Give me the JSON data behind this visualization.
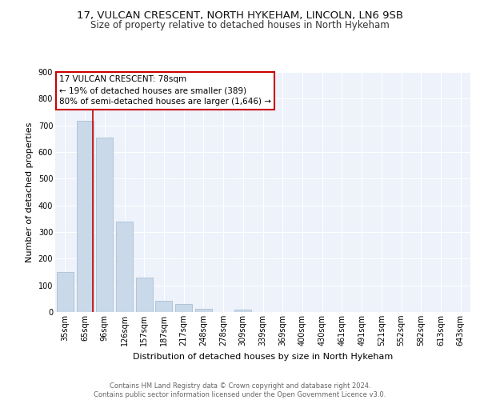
{
  "title1": "17, VULCAN CRESCENT, NORTH HYKEHAM, LINCOLN, LN6 9SB",
  "title2": "Size of property relative to detached houses in North Hykeham",
  "xlabel": "Distribution of detached houses by size in North Hykeham",
  "ylabel": "Number of detached properties",
  "categories": [
    "35sqm",
    "65sqm",
    "96sqm",
    "126sqm",
    "157sqm",
    "187sqm",
    "217sqm",
    "248sqm",
    "278sqm",
    "309sqm",
    "339sqm",
    "369sqm",
    "400sqm",
    "430sqm",
    "461sqm",
    "491sqm",
    "521sqm",
    "552sqm",
    "582sqm",
    "613sqm",
    "643sqm"
  ],
  "values": [
    150,
    718,
    655,
    340,
    130,
    42,
    30,
    12,
    0,
    8,
    0,
    0,
    0,
    0,
    0,
    0,
    0,
    0,
    0,
    0,
    0
  ],
  "bar_color": "#c9d9ea",
  "bar_edge_color": "#aabfcf",
  "vline_color": "#cc0000",
  "vline_x": 1.42,
  "annotation_text": "17 VULCAN CRESCENT: 78sqm\n← 19% of detached houses are smaller (389)\n80% of semi-detached houses are larger (1,646) →",
  "annotation_box_color": "#ffffff",
  "annotation_box_edge_color": "#cc0000",
  "ylim": [
    0,
    900
  ],
  "yticks": [
    0,
    100,
    200,
    300,
    400,
    500,
    600,
    700,
    800,
    900
  ],
  "footer": "Contains HM Land Registry data © Crown copyright and database right 2024.\nContains public sector information licensed under the Open Government Licence v3.0.",
  "bg_color": "#eef2fb",
  "grid_color": "#ffffff",
  "title1_fontsize": 9.5,
  "title2_fontsize": 8.5,
  "tick_fontsize": 7,
  "ylabel_fontsize": 8,
  "xlabel_fontsize": 8,
  "annotation_fontsize": 7.5,
  "footer_fontsize": 6
}
